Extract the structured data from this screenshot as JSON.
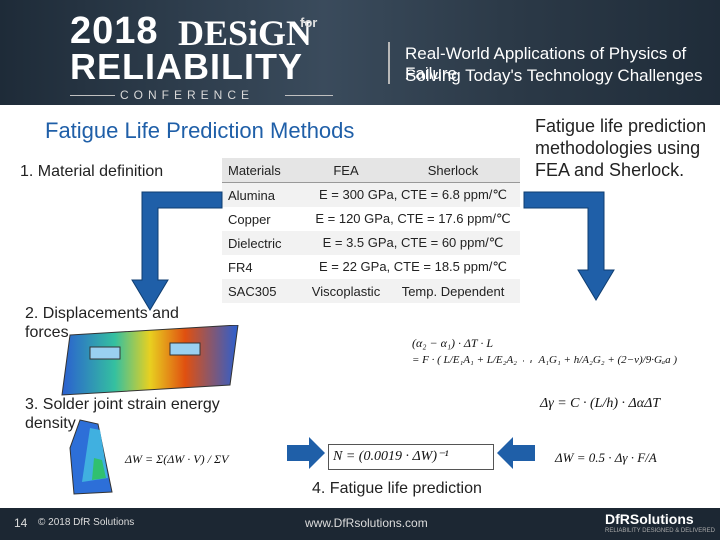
{
  "banner": {
    "year": "2018",
    "design": "DESiGN",
    "for": "for",
    "reliability": "RELIABILITY",
    "conference": "CONFERENCE",
    "tagline1": "Real-World Applications of Physics of Failure",
    "tagline2": "Solving Today's Technology Challenges"
  },
  "title": "Fatigue Life Prediction Methods",
  "side_note": "Fatigue life prediction methodologies using FEA and Sherlock.",
  "steps": {
    "s1": "1. Material definition",
    "s2": "2. Displacements and forces",
    "s3": "3. Solder joint strain energy density",
    "s4": "4. Fatigue life prediction"
  },
  "table": {
    "headers": [
      "Materials",
      "FEA",
      "Sherlock"
    ],
    "rows": [
      {
        "material": "Alumina",
        "value": "E = 300 GPa, CTE = 6.8 ppm/℃"
      },
      {
        "material": "Copper",
        "value": "E = 120 GPa, CTE = 17.6 ppm/℃"
      },
      {
        "material": "Dielectric",
        "value": "E = 3.5 GPa, CTE = 60 ppm/℃"
      },
      {
        "material": "FR4",
        "value": "E = 22 GPa, CTE = 18.5 ppm/℃"
      },
      {
        "material": "SAC305",
        "fea": "Viscoplastic",
        "sherlock": "Temp. Dependent"
      }
    ]
  },
  "formulas": {
    "force_lhs": "(α₂ − α₁) · ΔT · L",
    "force_rhs": "= F · ( L/E₁A₁ + L/E₂A₂ + h/A₁G₁ + h/A₂G₂ + (2−ν)/9·Gₐa )",
    "strain": "Δγ = C · (L/h) · ΔαΔT",
    "energy": "ΔW = 0.5 · Δγ · F/A",
    "avg": "ΔW = Σ(ΔW · V) / ΣV",
    "life": "N = (0.0019 · ΔW)⁻¹"
  },
  "footer": {
    "page": "14",
    "copyright": "© 2018 DfR Solutions",
    "url": "www.DfRsolutions.com",
    "logo": "DfRSolutions",
    "logo_sub": "RELIABILITY DESIGNED & DELIVERED"
  },
  "colors": {
    "title": "#1f5fa8",
    "arrow": "#1f5fa8",
    "banner": "#2a3a4a"
  }
}
